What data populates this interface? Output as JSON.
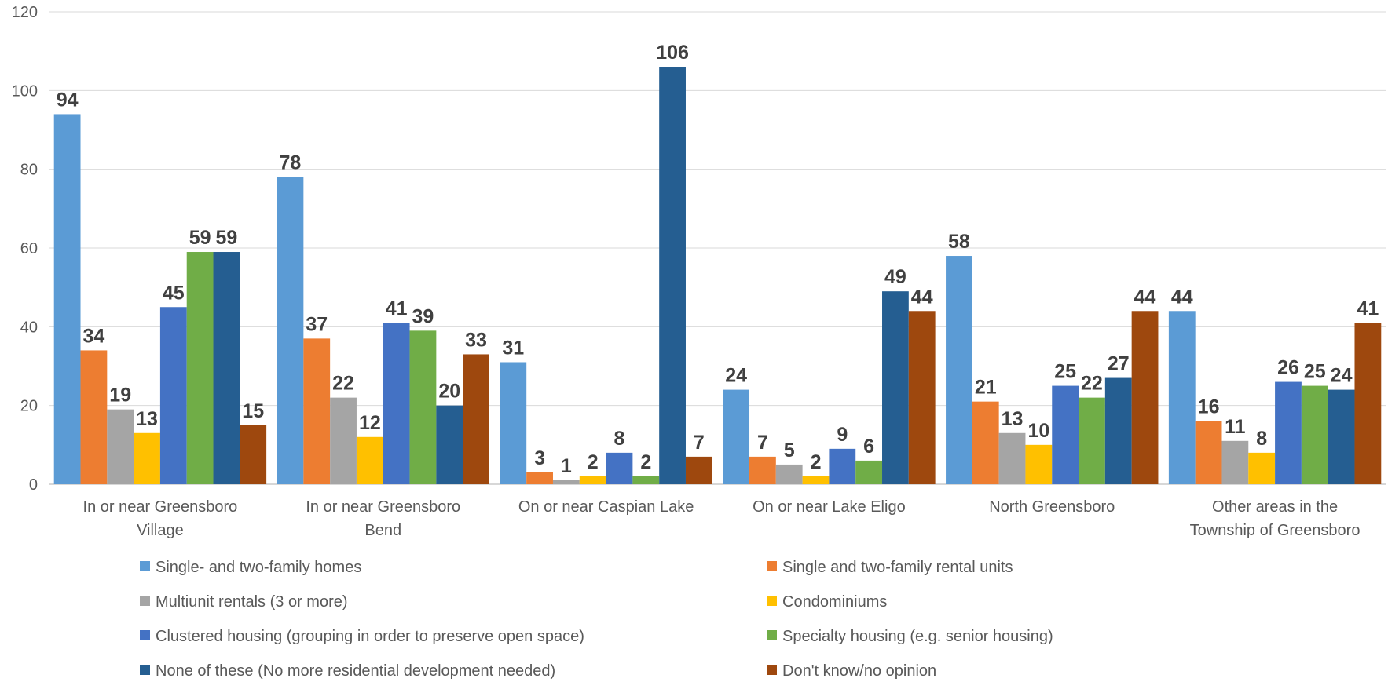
{
  "chart_data": {
    "type": "bar",
    "title": "",
    "xlabel": "",
    "ylabel": "",
    "ylim": [
      0,
      120
    ],
    "yticks": [
      0,
      20,
      40,
      60,
      80,
      100,
      120
    ],
    "grid": true,
    "legend_position": "bottom",
    "categories": [
      "In or near Greensboro Village",
      "In or near Greensboro Bend",
      "On or near Caspian Lake",
      "On or near Lake Eligo",
      "North Greensboro",
      "Other areas in the Township of Greensboro"
    ],
    "series": [
      {
        "name": "Single- and two-family homes",
        "color": "#5B9BD5",
        "values": [
          94,
          78,
          31,
          24,
          58,
          44
        ]
      },
      {
        "name": "Single and two-family rental units",
        "color": "#ED7D31",
        "values": [
          34,
          37,
          3,
          7,
          21,
          16
        ]
      },
      {
        "name": "Multiunit rentals (3 or more)",
        "color": "#A5A5A5",
        "values": [
          19,
          22,
          1,
          5,
          13,
          11
        ]
      },
      {
        "name": "Condominiums",
        "color": "#FFC000",
        "values": [
          13,
          12,
          2,
          2,
          10,
          8
        ]
      },
      {
        "name": "Clustered housing (grouping in order to preserve open space)",
        "color": "#4472C4",
        "values": [
          45,
          41,
          8,
          9,
          25,
          26
        ]
      },
      {
        "name": "Specialty housing (e.g. senior housing)",
        "color": "#70AD47",
        "values": [
          59,
          39,
          2,
          6,
          22,
          25
        ]
      },
      {
        "name": "None of these (No more residential development needed)",
        "color": "#255E91",
        "values": [
          59,
          20,
          106,
          49,
          27,
          24
        ]
      },
      {
        "name": "Don't know/no opinion",
        "color": "#9E480E",
        "values": [
          15,
          33,
          7,
          44,
          44,
          41
        ]
      }
    ]
  }
}
